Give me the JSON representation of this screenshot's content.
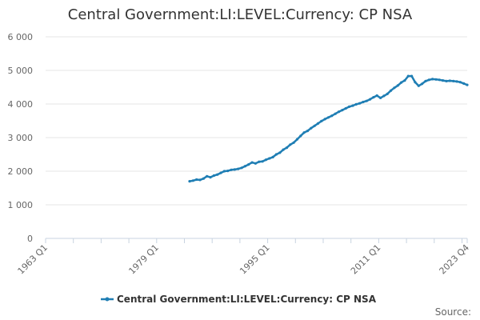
{
  "chart_data": {
    "type": "line",
    "title": "Central Government:LI:LEVEL:Currency: CP NSA",
    "xlabel": "",
    "ylabel": "",
    "source_label": "Source:",
    "x_ticks": [
      "1963 Q1",
      "1979 Q1",
      "1995 Q1",
      "2011 Q1",
      "2023 Q4"
    ],
    "y_ticks": [
      "0",
      "1 000",
      "2 000",
      "3 000",
      "4 000",
      "5 000",
      "6 000"
    ],
    "ylim": [
      0,
      6000
    ],
    "xlim": [
      "1963 Q1",
      "2023 Q4"
    ],
    "grid": "horizontal",
    "legend_position": "bottom",
    "series": [
      {
        "name": "Central Government:LI:LEVEL:Currency: CP NSA",
        "color": "#1f7eb4",
        "x": [
          "1983 Q4",
          "1984 Q2",
          "1984 Q4",
          "1985 Q2",
          "1985 Q4",
          "1986 Q2",
          "1986 Q4",
          "1987 Q2",
          "1987 Q4",
          "1988 Q2",
          "1988 Q4",
          "1989 Q2",
          "1989 Q4",
          "1990 Q2",
          "1990 Q4",
          "1991 Q2",
          "1991 Q4",
          "1992 Q2",
          "1992 Q4",
          "1993 Q2",
          "1993 Q4",
          "1994 Q2",
          "1994 Q4",
          "1995 Q2",
          "1995 Q4",
          "1996 Q2",
          "1996 Q4",
          "1997 Q2",
          "1997 Q4",
          "1998 Q2",
          "1998 Q4",
          "1999 Q2",
          "1999 Q4",
          "2000 Q2",
          "2000 Q4",
          "2001 Q2",
          "2001 Q4",
          "2002 Q2",
          "2002 Q4",
          "2003 Q2",
          "2003 Q4",
          "2004 Q2",
          "2004 Q4",
          "2005 Q2",
          "2005 Q4",
          "2006 Q2",
          "2006 Q4",
          "2007 Q2",
          "2007 Q4",
          "2008 Q2",
          "2008 Q4",
          "2009 Q2",
          "2009 Q4",
          "2010 Q2",
          "2010 Q4",
          "2011 Q2",
          "2011 Q4",
          "2012 Q2",
          "2012 Q4",
          "2013 Q2",
          "2013 Q4",
          "2014 Q2",
          "2014 Q4",
          "2015 Q2",
          "2015 Q4",
          "2016 Q2",
          "2016 Q4",
          "2017 Q2",
          "2017 Q4",
          "2018 Q2",
          "2018 Q4",
          "2019 Q2",
          "2019 Q4",
          "2020 Q2",
          "2020 Q4",
          "2021 Q2",
          "2021 Q4",
          "2022 Q2",
          "2022 Q4",
          "2023 Q2",
          "2023 Q4"
        ],
        "values": [
          1700,
          1720,
          1750,
          1740,
          1780,
          1850,
          1820,
          1870,
          1900,
          1950,
          2000,
          2010,
          2040,
          2050,
          2070,
          2100,
          2150,
          2200,
          2260,
          2230,
          2280,
          2290,
          2340,
          2380,
          2420,
          2500,
          2550,
          2640,
          2700,
          2790,
          2850,
          2950,
          3050,
          3150,
          3200,
          3280,
          3350,
          3420,
          3490,
          3550,
          3600,
          3650,
          3710,
          3770,
          3820,
          3870,
          3920,
          3950,
          3990,
          4020,
          4060,
          4090,
          4140,
          4200,
          4250,
          4180,
          4240,
          4300,
          4400,
          4480,
          4550,
          4640,
          4700,
          4830,
          4830,
          4650,
          4540,
          4600,
          4680,
          4720,
          4740,
          4730,
          4720,
          4700,
          4680,
          4690,
          4680,
          4670,
          4650,
          4610,
          4570
        ]
      }
    ]
  }
}
